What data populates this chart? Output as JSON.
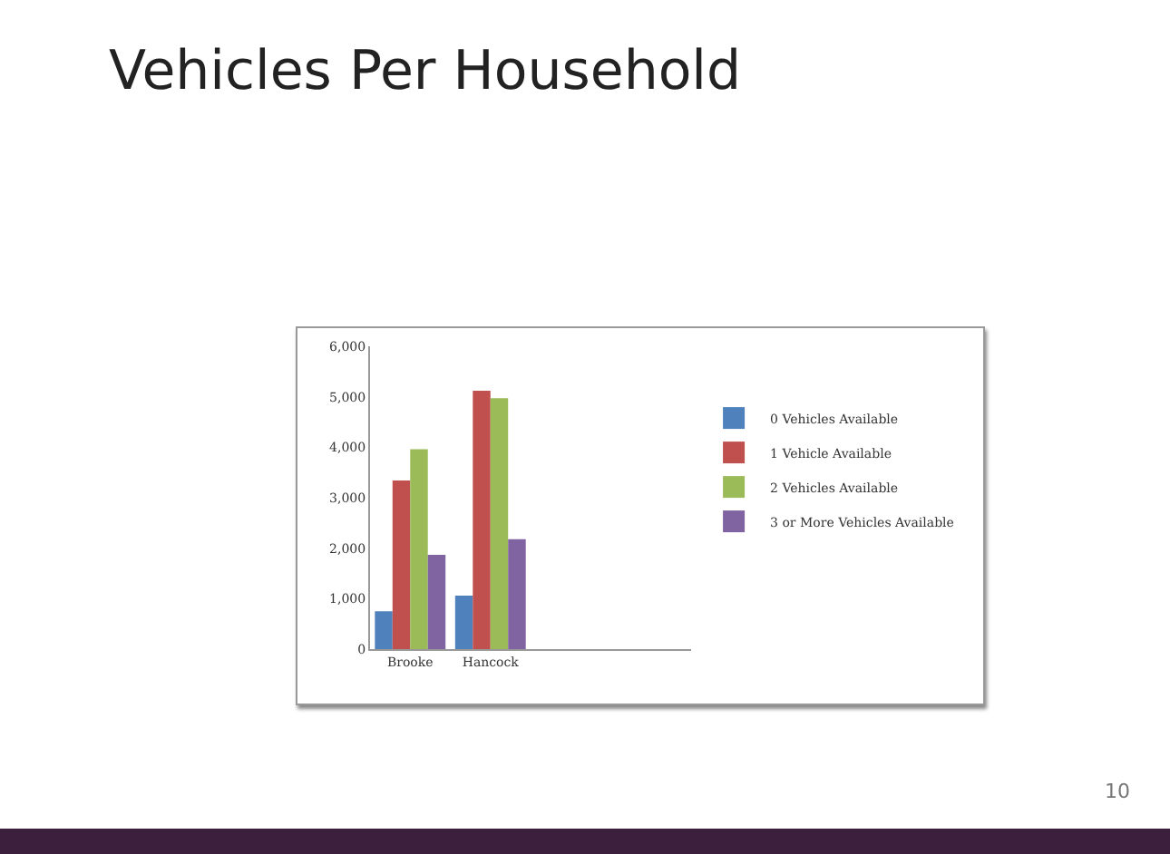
{
  "chart_data": {
    "type": "bar",
    "title": "Vehicles Per Household",
    "categories": [
      "Brooke",
      "Hancock",
      null,
      null
    ],
    "series": [
      {
        "name": "0 Vehicles Available",
        "color": "#4f81bd",
        "values": [
          750,
          1060,
          null,
          null
        ]
      },
      {
        "name": "1 Vehicle Available",
        "color": "#c0504d",
        "values": [
          3340,
          5120,
          null,
          null
        ]
      },
      {
        "name": "2 Vehicles Available",
        "color": "#9bbb59",
        "values": [
          3960,
          4970,
          null,
          null
        ]
      },
      {
        "name": "3 or More Vehicles Available",
        "color": "#8064a2",
        "values": [
          1870,
          2180,
          null,
          null
        ]
      }
    ],
    "ylim": [
      0,
      6000
    ],
    "yticks": [
      {
        "value": 0,
        "label": "0"
      },
      {
        "value": 1000,
        "label": "1,000"
      },
      {
        "value": 2000,
        "label": "2,000"
      },
      {
        "value": 3000,
        "label": "3,000"
      },
      {
        "value": 4000,
        "label": "4,000"
      },
      {
        "value": 5000,
        "label": "5,000"
      },
      {
        "value": 6000,
        "label": "6,000"
      }
    ],
    "grid": false,
    "legend": "right",
    "annotations": [
      "10"
    ]
  }
}
